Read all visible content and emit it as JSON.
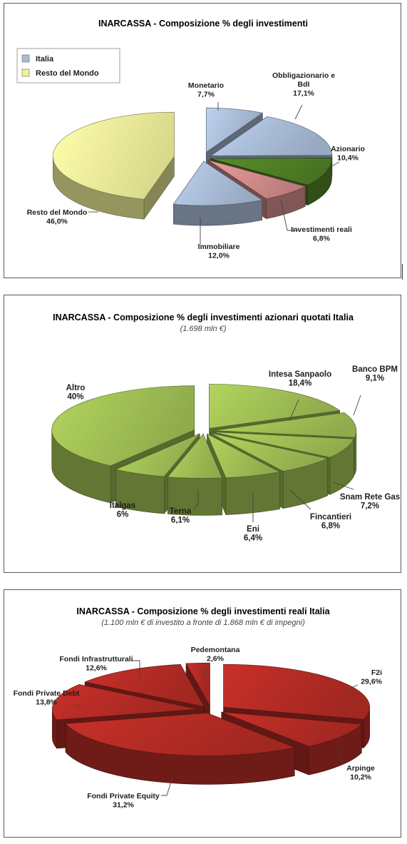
{
  "chart_data": [
    {
      "type": "pie",
      "title": "INARCASSA  - Composizione % degli investimenti",
      "legend": [
        "Italia",
        "Resto del Mondo"
      ],
      "legend_position": "top-left",
      "colors": {
        "Italia": "#a9bcd6",
        "Resto del Mondo": "#f1f19a"
      },
      "slices": [
        {
          "name": "Monetario",
          "value": 7.7,
          "label": "7,7%",
          "group": "Italia",
          "color": "#a9bcd6"
        },
        {
          "name": "Obbligazionario e BdI",
          "value": 17.1,
          "label": "17,1%",
          "group": "Italia",
          "color": "#a9bcd6"
        },
        {
          "name": "Azionario",
          "value": 10.4,
          "label": "10,4%",
          "group": "Italia",
          "color": "#4f7f25"
        },
        {
          "name": "Investimenti reali",
          "value": 6.8,
          "label": "6,8%",
          "group": "Italia",
          "color": "#cf8a8a"
        },
        {
          "name": "Immobiliare",
          "value": 12.0,
          "label": "12,0%",
          "group": "Italia",
          "color": "#a9bcd6"
        },
        {
          "name": "Resto del Mondo",
          "value": 46.0,
          "label": "46,0%",
          "group": "Resto del Mondo",
          "color": "#f1f19a"
        }
      ]
    },
    {
      "type": "pie",
      "title": "INARCASSA - Composizione % degli investimenti azionari quotati Italia",
      "subtitle": "(1.698 mln €)",
      "colors": {
        "slice": "#9fbe54"
      },
      "slices": [
        {
          "name": "Intesa Sanpaolo",
          "value": 18.4,
          "label": "18,4%"
        },
        {
          "name": "Banco BPM",
          "value": 9.1,
          "label": "9,1%"
        },
        {
          "name": "Snam Rete Gas",
          "value": 7.2,
          "label": "7,2%"
        },
        {
          "name": "Fincantieri",
          "value": 6.8,
          "label": "6,8%"
        },
        {
          "name": "Eni",
          "value": 6.4,
          "label": "6,4%"
        },
        {
          "name": "Terna",
          "value": 6.1,
          "label": "6,1%"
        },
        {
          "name": "Italgas",
          "value": 6,
          "label": "6%"
        },
        {
          "name": "Altro",
          "value": 40,
          "label": "40%"
        }
      ]
    },
    {
      "type": "pie",
      "title": "INARCASSA - Composizione % degli investimenti reali Italia",
      "subtitle": "(1.100 mln € di investito a fronte di 1.868 mln € di impegni)",
      "colors": {
        "slice": "#b32b25"
      },
      "slices": [
        {
          "name": "F2i",
          "value": 29.6,
          "label": "29,6%"
        },
        {
          "name": "Arpinge",
          "value": 10.2,
          "label": "10,2%"
        },
        {
          "name": "Fondi Private Equity",
          "value": 31.2,
          "label": "31,2%"
        },
        {
          "name": "Fondi Private Debt",
          "value": 13.8,
          "label": "13,8%"
        },
        {
          "name": "Fondi Infrastrutturali",
          "value": 12.6,
          "label": "12,6%"
        },
        {
          "name": "Pedemontana",
          "value": 2.6,
          "label": "2,6%"
        }
      ]
    }
  ]
}
